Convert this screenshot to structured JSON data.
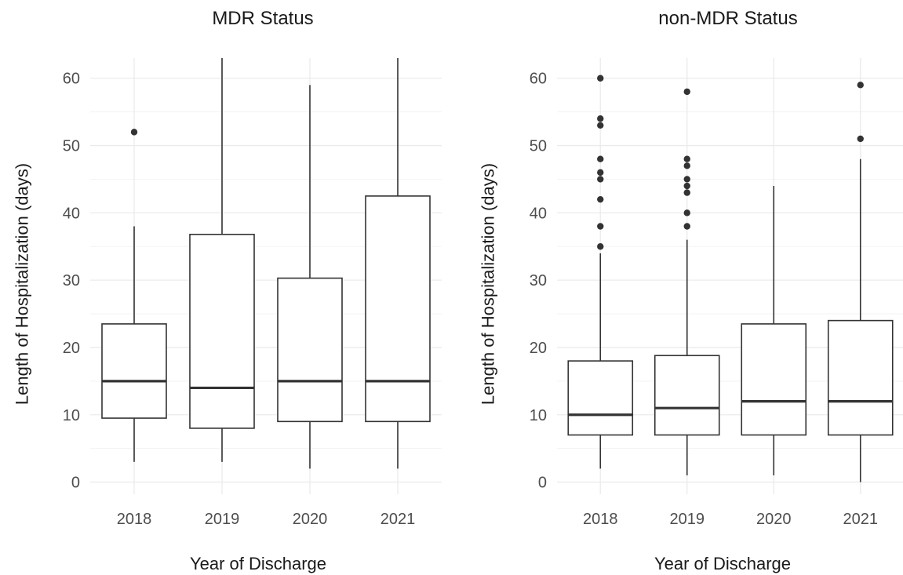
{
  "chart_data": [
    {
      "type": "box",
      "title": "MDR Status",
      "xlabel": "Year of Discharge",
      "ylabel": "Length of Hospitalization (days)",
      "ylim": [
        -1.8,
        63
      ],
      "yticks": [
        0,
        10,
        20,
        30,
        40,
        50,
        60
      ],
      "grid": true,
      "categories": [
        "2018",
        "2019",
        "2020",
        "2021"
      ],
      "boxes": [
        {
          "category": "2018",
          "whisker_low": 3,
          "q1": 9.5,
          "median": 15,
          "q3": 23.5,
          "whisker_high": 38,
          "outliers": [
            52
          ]
        },
        {
          "category": "2019",
          "whisker_low": 3,
          "q1": 8,
          "median": 14,
          "q3": 36.8,
          "whisker_high": 63,
          "outliers": []
        },
        {
          "category": "2020",
          "whisker_low": 2,
          "q1": 9,
          "median": 15,
          "q3": 30.3,
          "whisker_high": 59,
          "outliers": []
        },
        {
          "category": "2021",
          "whisker_low": 2,
          "q1": 9,
          "median": 15,
          "q3": 42.5,
          "whisker_high": 63,
          "outliers": []
        }
      ]
    },
    {
      "type": "box",
      "title": "non-MDR Status",
      "xlabel": "Year of Discharge",
      "ylabel": "Length of Hospitalization (days)",
      "ylim": [
        -1.8,
        63
      ],
      "yticks": [
        0,
        10,
        20,
        30,
        40,
        50,
        60
      ],
      "grid": true,
      "categories": [
        "2018",
        "2019",
        "2020",
        "2021"
      ],
      "boxes": [
        {
          "category": "2018",
          "whisker_low": 2,
          "q1": 7,
          "median": 10,
          "q3": 18,
          "whisker_high": 34,
          "outliers": [
            35,
            38,
            42,
            45,
            46,
            48,
            53,
            54,
            60
          ]
        },
        {
          "category": "2019",
          "whisker_low": 1,
          "q1": 7,
          "median": 11,
          "q3": 18.8,
          "whisker_high": 36,
          "outliers": [
            38,
            40,
            43,
            44,
            45,
            47,
            48,
            58
          ]
        },
        {
          "category": "2020",
          "whisker_low": 1,
          "q1": 7,
          "median": 12,
          "q3": 23.5,
          "whisker_high": 44,
          "outliers": []
        },
        {
          "category": "2021",
          "whisker_low": 0,
          "q1": 7,
          "median": 12,
          "q3": 24,
          "whisker_high": 48,
          "outliers": [
            51,
            59
          ]
        }
      ]
    }
  ]
}
